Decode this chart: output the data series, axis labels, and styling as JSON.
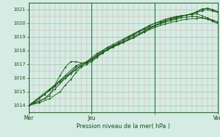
{
  "title": "",
  "xlabel": "Pression niveau de la mer( hPa )",
  "ylabel": "",
  "bg_color": "#d4ece4",
  "line_color": "#1a5c1a",
  "marker_color": "#1a5c1a",
  "xlim": [
    0,
    72
  ],
  "ylim": [
    1013.5,
    1021.5
  ],
  "yticks": [
    1014,
    1015,
    1016,
    1017,
    1018,
    1019,
    1020,
    1021
  ],
  "xtick_positions": [
    0,
    24,
    48,
    72
  ],
  "xtick_labels": [
    "Mer",
    "Jeu",
    "",
    "Ven"
  ],
  "vline_positions": [
    0,
    24,
    48,
    72
  ],
  "series": [
    [
      0,
      1014.0,
      2,
      1014.2,
      4,
      1014.5,
      6,
      1014.8,
      8,
      1015.1,
      10,
      1015.4,
      12,
      1015.7,
      14,
      1016.0,
      16,
      1016.3,
      18,
      1016.6,
      20,
      1016.9,
      22,
      1017.15,
      24,
      1017.4,
      26,
      1017.7,
      28,
      1018.0,
      30,
      1018.25,
      32,
      1018.45,
      34,
      1018.65,
      36,
      1018.85,
      38,
      1019.05,
      40,
      1019.25,
      42,
      1019.45,
      44,
      1019.65,
      46,
      1019.85,
      48,
      1020.0,
      50,
      1020.1,
      52,
      1020.2,
      54,
      1020.3,
      56,
      1020.4,
      58,
      1020.5,
      60,
      1020.6,
      62,
      1020.7,
      64,
      1020.8,
      66,
      1020.9,
      68,
      1021.0,
      70,
      1020.9,
      72,
      1020.8
    ],
    [
      0,
      1014.0,
      4,
      1014.3,
      8,
      1014.7,
      10,
      1015.5,
      12,
      1016.2,
      14,
      1016.8,
      16,
      1017.2,
      18,
      1017.2,
      20,
      1017.1,
      22,
      1017.1,
      24,
      1017.3,
      26,
      1017.6,
      28,
      1017.9,
      30,
      1018.1,
      32,
      1018.35,
      34,
      1018.55,
      36,
      1018.75,
      38,
      1018.95,
      40,
      1019.15,
      42,
      1019.4,
      44,
      1019.6,
      46,
      1019.8,
      48,
      1020.0,
      50,
      1020.15,
      52,
      1020.3,
      54,
      1020.4,
      56,
      1020.5,
      58,
      1020.55,
      60,
      1020.6,
      62,
      1020.65,
      64,
      1020.7,
      66,
      1020.55,
      68,
      1020.4,
      70,
      1020.2,
      72,
      1020.0
    ],
    [
      0,
      1014.0,
      4,
      1014.2,
      8,
      1014.5,
      12,
      1015.0,
      14,
      1015.5,
      16,
      1015.9,
      18,
      1016.4,
      20,
      1016.8,
      22,
      1017.0,
      24,
      1017.2,
      26,
      1017.5,
      28,
      1017.8,
      30,
      1018.05,
      32,
      1018.25,
      34,
      1018.45,
      36,
      1018.65,
      38,
      1018.85,
      40,
      1019.05,
      42,
      1019.25,
      44,
      1019.45,
      46,
      1019.65,
      48,
      1019.85,
      50,
      1020.0,
      52,
      1020.1,
      54,
      1020.2,
      56,
      1020.3,
      58,
      1020.4,
      60,
      1020.45,
      62,
      1020.5,
      64,
      1020.5,
      66,
      1020.4,
      68,
      1020.3,
      70,
      1020.15,
      72,
      1020.0
    ],
    [
      0,
      1014.0,
      6,
      1014.5,
      10,
      1015.2,
      14,
      1016.0,
      18,
      1016.8,
      22,
      1017.1,
      24,
      1017.3,
      26,
      1017.6,
      28,
      1017.9,
      32,
      1018.3,
      36,
      1018.6,
      40,
      1018.95,
      44,
      1019.35,
      48,
      1019.7,
      52,
      1019.95,
      56,
      1020.15,
      60,
      1020.3,
      64,
      1020.35,
      66,
      1020.4,
      68,
      1020.35,
      70,
      1020.25,
      72,
      1020.1
    ],
    [
      0,
      1014.0,
      6,
      1014.8,
      10,
      1015.5,
      14,
      1016.2,
      18,
      1016.9,
      22,
      1017.2,
      24,
      1017.5,
      26,
      1017.8,
      30,
      1018.2,
      34,
      1018.5,
      38,
      1019.0,
      42,
      1019.4,
      46,
      1019.7,
      50,
      1020.0,
      54,
      1020.35,
      58,
      1020.55,
      62,
      1020.65,
      66,
      1021.05,
      68,
      1021.1,
      70,
      1021.0,
      72,
      1020.8
    ],
    [
      0,
      1014.0,
      8,
      1015.2,
      12,
      1015.8,
      16,
      1016.4,
      20,
      1016.9,
      24,
      1017.4,
      28,
      1017.85,
      32,
      1018.25,
      36,
      1018.6,
      40,
      1018.95,
      44,
      1019.4,
      48,
      1019.8,
      50,
      1019.95,
      52,
      1020.1,
      54,
      1020.2,
      56,
      1020.35,
      58,
      1020.5,
      60,
      1020.6,
      62,
      1020.7,
      64,
      1020.85,
      66,
      1021.0,
      68,
      1021.1,
      70,
      1021.0,
      72,
      1020.85
    ]
  ]
}
